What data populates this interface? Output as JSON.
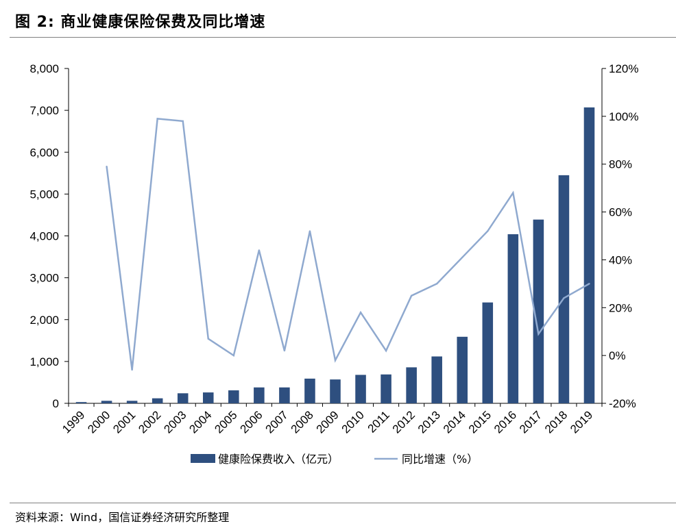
{
  "figure": {
    "title": "图 2:  商业健康保险保费及同比增速",
    "source": "资料来源：Wind，国信证券经济研究所整理"
  },
  "colors": {
    "bar": "#2e4f7f",
    "line": "#8fa9cf",
    "axis": "#000000",
    "rule": "#7f7f7f"
  },
  "chart_data": {
    "type": "bar",
    "title": "",
    "categories": [
      "1999",
      "2000",
      "2001",
      "2002",
      "2003",
      "2004",
      "2005",
      "2006",
      "2007",
      "2008",
      "2009",
      "2010",
      "2011",
      "2012",
      "2013",
      "2014",
      "2015",
      "2016",
      "2017",
      "2018",
      "2019"
    ],
    "series": [
      {
        "name": "健康险保费收入（亿元）",
        "type": "bar",
        "axis": "left",
        "values": [
          30,
          60,
          60,
          120,
          240,
          260,
          310,
          380,
          380,
          590,
          570,
          680,
          690,
          860,
          1120,
          1590,
          2410,
          4040,
          4390,
          5450,
          7070
        ]
      },
      {
        "name": "同比增速（%）",
        "type": "line",
        "axis": "right",
        "values": [
          null,
          79,
          -6,
          99,
          98,
          7,
          0,
          44,
          2,
          52,
          -2,
          18,
          2,
          25,
          30,
          41,
          52,
          68,
          9,
          24,
          30
        ]
      }
    ],
    "y_left": {
      "lim": [
        0,
        8000
      ],
      "ticks": [
        0,
        1000,
        2000,
        3000,
        4000,
        5000,
        6000,
        7000,
        8000
      ],
      "tick_labels": [
        "0",
        "1,000",
        "2,000",
        "3,000",
        "4,000",
        "5,000",
        "6,000",
        "7,000",
        "8,000"
      ]
    },
    "y_right": {
      "lim": [
        -20,
        120
      ],
      "ticks": [
        -20,
        0,
        20,
        40,
        60,
        80,
        100,
        120
      ],
      "tick_labels": [
        "-20%",
        "0%",
        "20%",
        "40%",
        "60%",
        "80%",
        "100%",
        "120%"
      ]
    },
    "grid": false,
    "legend_position": "bottom"
  }
}
